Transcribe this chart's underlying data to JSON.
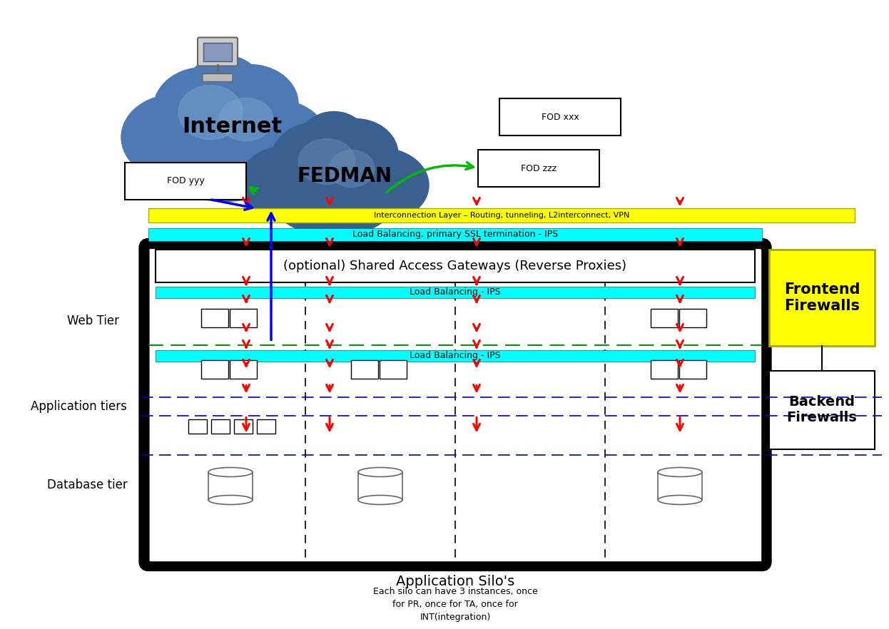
{
  "bg_color": "#ffffff",
  "internet_text": "Internet",
  "fedman_text": "FEDMAN",
  "fod_xxx": "FOD xxx",
  "fod_zzz": "FOD zzz",
  "fod_yyy": "FOD yyy",
  "interconnect_text": "Interconnection Layer – Routing, tunneling, L2interconnect, VPN",
  "lb_ssl_text": "Load Balancing, primary SSL termination - IPS",
  "sag_text": "(optional) Shared Access Gateways (Reverse Proxies)",
  "lb_ips1_text": "Load Balancing - IPS",
  "lb_ips2_text": "Load Balancing - IPS",
  "web_tier_text": "Web Tier",
  "app_tier_text": "Application tiers",
  "db_tier_text": "Database tier",
  "frontend_fw_text": "Frontend\nFirewalls",
  "backend_fw_text": "Backend\nFirewalls",
  "app_silos_text": "Application Silo's",
  "note_text": "Each silo can have 3 instances, once\nfor PR, once for TA, once for\nINT(integration)",
  "yellow": "#ffff00",
  "cyan": "#00ffff",
  "red": "#ff0000",
  "blue": "#0000ff",
  "green": "#00bb00",
  "black": "#000000",
  "white": "#ffffff"
}
